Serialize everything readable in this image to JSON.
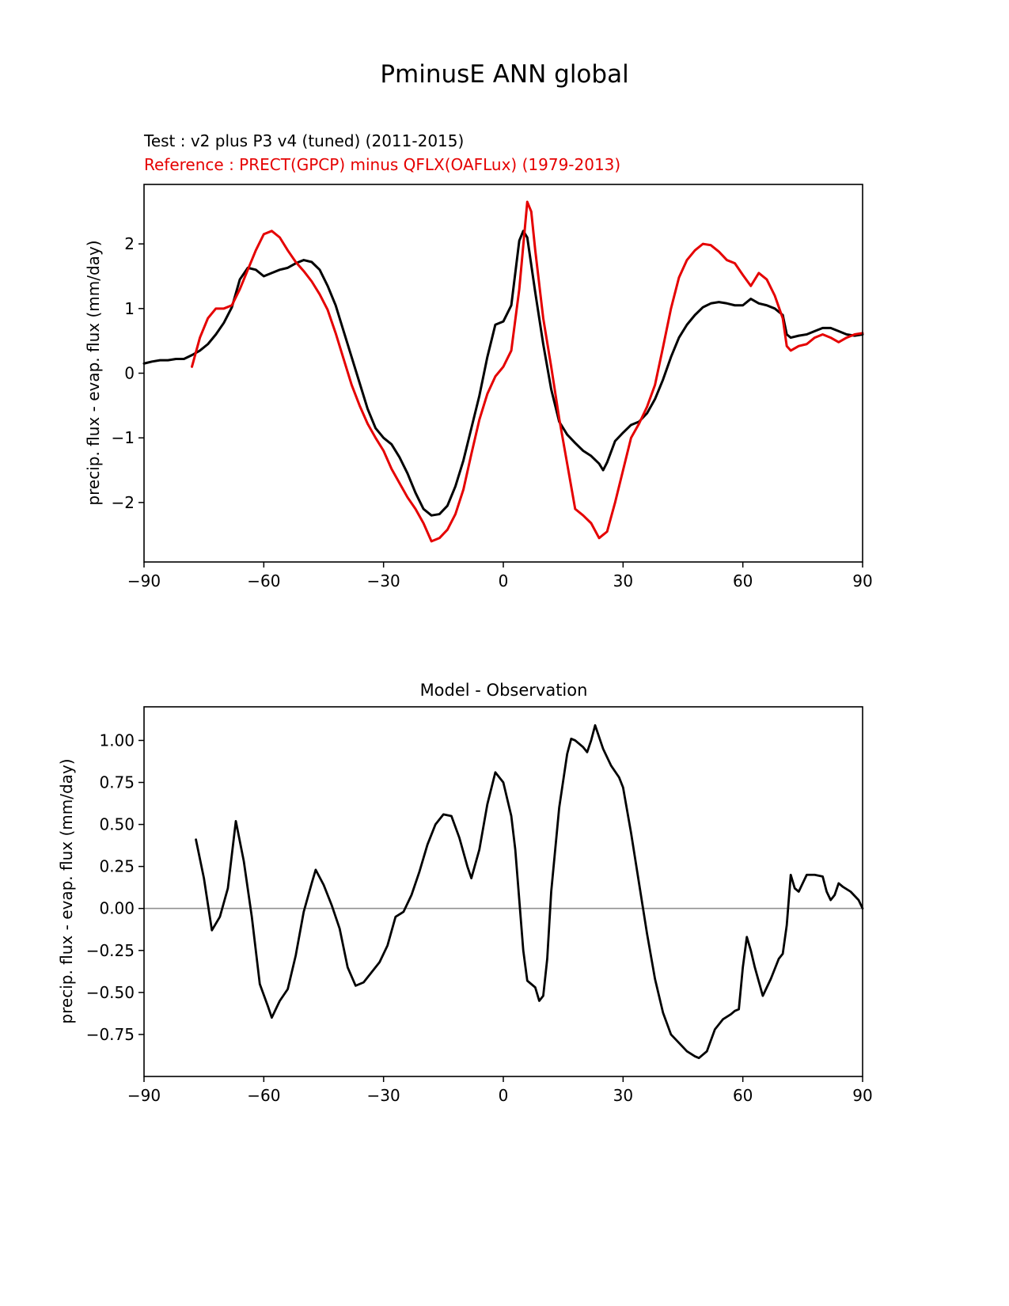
{
  "figure": {
    "title": "PminusE ANN global"
  },
  "chart_data": [
    {
      "type": "line",
      "title": "",
      "xlabel": "",
      "ylabel": "precip. flux - evap. flux (mm/day)",
      "xlim": [
        -90,
        90
      ],
      "ylim": [
        -2.92,
        2.92
      ],
      "xtick_vals": [
        -90,
        -60,
        -30,
        0,
        30,
        60,
        90
      ],
      "xtick_labels": [
        "−90",
        "−60",
        "−30",
        "0",
        "30",
        "60",
        "90"
      ],
      "ytick_vals": [
        -2,
        -1,
        0,
        1,
        2
      ],
      "ytick_labels": [
        "−2",
        "−1",
        "0",
        "1",
        "2"
      ],
      "grid": false,
      "legend_position": "above-left",
      "series": [
        {
          "name": "Test : v2 plus P3 v4 (tuned) (2011-2015)",
          "color": "#000000",
          "x": [
            -90,
            -88,
            -86,
            -84,
            -82,
            -80,
            -78,
            -76,
            -74,
            -72,
            -70,
            -68,
            -66,
            -64,
            -62,
            -60,
            -58,
            -56,
            -54,
            -52,
            -50,
            -48,
            -46,
            -44,
            -42,
            -40,
            -38,
            -36,
            -34,
            -32,
            -30,
            -28,
            -26,
            -24,
            -22,
            -20,
            -18,
            -16,
            -14,
            -12,
            -10,
            -8,
            -6,
            -4,
            -2,
            0,
            2,
            4,
            5,
            6,
            8,
            10,
            12,
            14,
            16,
            18,
            20,
            22,
            24,
            25,
            26,
            28,
            30,
            32,
            34,
            36,
            38,
            40,
            42,
            44,
            46,
            48,
            50,
            52,
            54,
            56,
            58,
            60,
            62,
            64,
            66,
            68,
            70,
            71,
            72,
            74,
            76,
            78,
            80,
            82,
            84,
            86,
            88,
            90
          ],
          "y": [
            0.15,
            0.18,
            0.2,
            0.2,
            0.22,
            0.22,
            0.28,
            0.35,
            0.45,
            0.6,
            0.78,
            1.02,
            1.45,
            1.63,
            1.6,
            1.5,
            1.55,
            1.6,
            1.63,
            1.7,
            1.75,
            1.72,
            1.6,
            1.35,
            1.05,
            0.65,
            0.25,
            -0.15,
            -0.55,
            -0.85,
            -1.0,
            -1.1,
            -1.3,
            -1.55,
            -1.85,
            -2.1,
            -2.2,
            -2.18,
            -2.05,
            -1.75,
            -1.35,
            -0.85,
            -0.35,
            0.25,
            0.75,
            0.8,
            1.05,
            2.05,
            2.2,
            2.1,
            1.25,
            0.45,
            -0.25,
            -0.75,
            -0.95,
            -1.08,
            -1.2,
            -1.28,
            -1.4,
            -1.5,
            -1.38,
            -1.05,
            -0.92,
            -0.8,
            -0.75,
            -0.62,
            -0.4,
            -0.1,
            0.25,
            0.55,
            0.75,
            0.9,
            1.02,
            1.08,
            1.1,
            1.08,
            1.05,
            1.05,
            1.15,
            1.08,
            1.05,
            1.0,
            0.9,
            0.6,
            0.55,
            0.58,
            0.6,
            0.65,
            0.7,
            0.7,
            0.65,
            0.6,
            0.58,
            0.6
          ]
        },
        {
          "name": "Reference : PRECT(GPCP) minus QFLX(OAFLux) (1979-2013)",
          "color": "#e50000",
          "x": [
            -78,
            -76,
            -74,
            -72,
            -70,
            -68,
            -66,
            -64,
            -62,
            -60,
            -58,
            -56,
            -54,
            -52,
            -50,
            -48,
            -46,
            -44,
            -42,
            -40,
            -38,
            -36,
            -34,
            -32,
            -30,
            -28,
            -26,
            -24,
            -22,
            -20,
            -18,
            -16,
            -14,
            -12,
            -10,
            -8,
            -6,
            -4,
            -2,
            0,
            2,
            4,
            6,
            7,
            8,
            10,
            12,
            14,
            16,
            18,
            20,
            22,
            24,
            26,
            28,
            30,
            32,
            34,
            36,
            38,
            40,
            42,
            44,
            46,
            48,
            50,
            52,
            54,
            56,
            58,
            60,
            62,
            64,
            66,
            68,
            70,
            71,
            72,
            74,
            76,
            78,
            80,
            82,
            84,
            86,
            88,
            90
          ],
          "y": [
            0.1,
            0.55,
            0.85,
            1.0,
            1.0,
            1.05,
            1.3,
            1.6,
            1.9,
            2.15,
            2.2,
            2.1,
            1.9,
            1.72,
            1.58,
            1.42,
            1.22,
            0.98,
            0.62,
            0.22,
            -0.18,
            -0.5,
            -0.78,
            -1.0,
            -1.2,
            -1.48,
            -1.7,
            -1.92,
            -2.1,
            -2.32,
            -2.6,
            -2.55,
            -2.42,
            -2.18,
            -1.8,
            -1.25,
            -0.72,
            -0.32,
            -0.05,
            0.1,
            0.35,
            1.3,
            2.65,
            2.5,
            1.9,
            0.85,
            0.1,
            -0.7,
            -1.4,
            -2.1,
            -2.2,
            -2.32,
            -2.55,
            -2.45,
            -2.0,
            -1.5,
            -1.0,
            -0.78,
            -0.52,
            -0.18,
            0.4,
            1.0,
            1.48,
            1.75,
            1.9,
            2.0,
            1.98,
            1.88,
            1.75,
            1.7,
            1.52,
            1.35,
            1.55,
            1.45,
            1.2,
            0.85,
            0.42,
            0.35,
            0.42,
            0.45,
            0.55,
            0.6,
            0.55,
            0.48,
            0.55,
            0.6,
            0.62
          ]
        }
      ]
    },
    {
      "type": "line",
      "title": "Model - Observation",
      "xlabel": "",
      "ylabel": "precip. flux - evap. flux (mm/day)",
      "xlim": [
        -90,
        90
      ],
      "ylim": [
        -1.0,
        1.2
      ],
      "xtick_vals": [
        -90,
        -60,
        -30,
        0,
        30,
        60,
        90
      ],
      "xtick_labels": [
        "−90",
        "−60",
        "−30",
        "0",
        "30",
        "60",
        "90"
      ],
      "ytick_vals": [
        1.0,
        0.75,
        0.5,
        0.25,
        0.0,
        -0.25,
        -0.5,
        -0.75
      ],
      "ytick_labels": [
        "1.00",
        "0.75",
        "0.50",
        "0.25",
        "0.00",
        "−0.25",
        "−0.50",
        "−0.75"
      ],
      "grid": false,
      "zero_line": true,
      "zero_line_color": "#909090",
      "series": [
        {
          "name": "Model minus Observation",
          "color": "#000000",
          "x": [
            -77,
            -75,
            -73,
            -71,
            -69,
            -67,
            -65,
            -63,
            -61,
            -59,
            -58,
            -56,
            -54,
            -52,
            -50,
            -48,
            -47,
            -45,
            -43,
            -41,
            -39,
            -37,
            -35,
            -33,
            -31,
            -29,
            -27,
            -25,
            -23,
            -21,
            -19,
            -17,
            -15,
            -13,
            -11,
            -9,
            -8,
            -6,
            -4,
            -2,
            0,
            2,
            3,
            4,
            5,
            6,
            8,
            9,
            10,
            11,
            12,
            14,
            16,
            17,
            18,
            20,
            21,
            22,
            23,
            25,
            27,
            29,
            30,
            32,
            34,
            36,
            38,
            40,
            42,
            44,
            46,
            48,
            49,
            51,
            53,
            55,
            57,
            58,
            59,
            60,
            61,
            62,
            63,
            65,
            67,
            69,
            70,
            71,
            72,
            73,
            74,
            76,
            78,
            80,
            81,
            82,
            83,
            84,
            85,
            87,
            89,
            90
          ],
          "y": [
            0.41,
            0.18,
            -0.13,
            -0.05,
            0.12,
            0.52,
            0.28,
            -0.05,
            -0.45,
            -0.58,
            -0.65,
            -0.55,
            -0.48,
            -0.28,
            -0.02,
            0.15,
            0.23,
            0.14,
            0.02,
            -0.12,
            -0.35,
            -0.46,
            -0.44,
            -0.38,
            -0.32,
            -0.22,
            -0.05,
            -0.02,
            0.08,
            0.22,
            0.38,
            0.5,
            0.56,
            0.55,
            0.42,
            0.25,
            0.18,
            0.35,
            0.62,
            0.81,
            0.75,
            0.55,
            0.35,
            0.05,
            -0.25,
            -0.43,
            -0.47,
            -0.55,
            -0.52,
            -0.3,
            0.1,
            0.6,
            0.92,
            1.01,
            1.0,
            0.96,
            0.93,
            1.0,
            1.09,
            0.95,
            0.85,
            0.78,
            0.72,
            0.45,
            0.15,
            -0.15,
            -0.42,
            -0.62,
            -0.75,
            -0.8,
            -0.85,
            -0.88,
            -0.89,
            -0.85,
            -0.72,
            -0.66,
            -0.63,
            -0.61,
            -0.6,
            -0.35,
            -0.17,
            -0.25,
            -0.35,
            -0.52,
            -0.42,
            -0.3,
            -0.27,
            -0.1,
            0.2,
            0.12,
            0.1,
            0.2,
            0.2,
            0.19,
            0.1,
            0.05,
            0.08,
            0.15,
            0.13,
            0.1,
            0.05,
            0.0
          ]
        }
      ]
    }
  ]
}
